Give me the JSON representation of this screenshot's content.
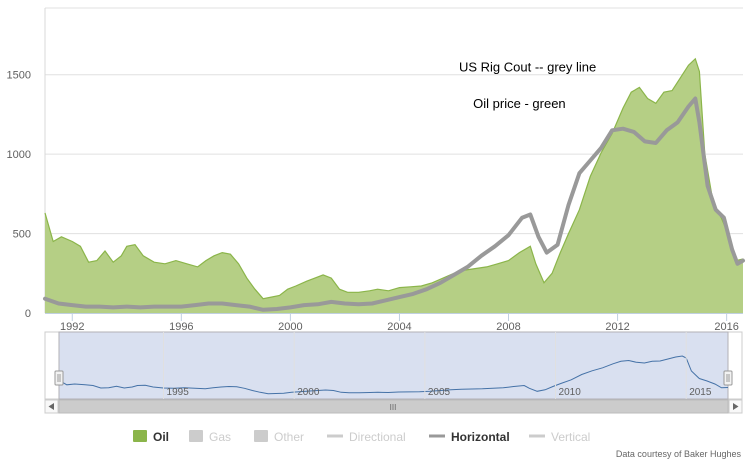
{
  "chart_data": {
    "type": "area",
    "series": [
      {
        "name": "Oil",
        "kind": "area",
        "color": "#8bb54a",
        "fill": "#b5cf85",
        "points": [
          [
            1991.0,
            630
          ],
          [
            1991.3,
            450
          ],
          [
            1991.6,
            480
          ],
          [
            1992.0,
            450
          ],
          [
            1992.3,
            420
          ],
          [
            1992.6,
            320
          ],
          [
            1992.9,
            330
          ],
          [
            1993.2,
            390
          ],
          [
            1993.5,
            320
          ],
          [
            1993.8,
            360
          ],
          [
            1994.0,
            420
          ],
          [
            1994.3,
            430
          ],
          [
            1994.6,
            360
          ],
          [
            1995.0,
            320
          ],
          [
            1995.4,
            310
          ],
          [
            1995.8,
            330
          ],
          [
            1996.2,
            310
          ],
          [
            1996.6,
            290
          ],
          [
            1996.9,
            330
          ],
          [
            1997.2,
            360
          ],
          [
            1997.5,
            380
          ],
          [
            1997.8,
            370
          ],
          [
            1998.1,
            310
          ],
          [
            1998.4,
            220
          ],
          [
            1998.7,
            150
          ],
          [
            1999.0,
            90
          ],
          [
            1999.3,
            100
          ],
          [
            1999.6,
            110
          ],
          [
            1999.9,
            150
          ],
          [
            2000.2,
            170
          ],
          [
            2000.6,
            200
          ],
          [
            2000.9,
            220
          ],
          [
            2001.2,
            240
          ],
          [
            2001.5,
            220
          ],
          [
            2001.8,
            150
          ],
          [
            2002.1,
            130
          ],
          [
            2002.5,
            130
          ],
          [
            2002.9,
            140
          ],
          [
            2003.2,
            150
          ],
          [
            2003.6,
            140
          ],
          [
            2004.0,
            160
          ],
          [
            2004.4,
            165
          ],
          [
            2004.8,
            170
          ],
          [
            2005.2,
            190
          ],
          [
            2005.6,
            220
          ],
          [
            2006.0,
            250
          ],
          [
            2006.4,
            270
          ],
          [
            2006.8,
            280
          ],
          [
            2007.2,
            290
          ],
          [
            2007.6,
            310
          ],
          [
            2008.0,
            330
          ],
          [
            2008.4,
            380
          ],
          [
            2008.8,
            420
          ],
          [
            2009.0,
            310
          ],
          [
            2009.3,
            190
          ],
          [
            2009.6,
            250
          ],
          [
            2009.9,
            380
          ],
          [
            2010.2,
            500
          ],
          [
            2010.6,
            650
          ],
          [
            2011.0,
            860
          ],
          [
            2011.4,
            1010
          ],
          [
            2011.8,
            1130
          ],
          [
            2012.2,
            1290
          ],
          [
            2012.5,
            1390
          ],
          [
            2012.8,
            1420
          ],
          [
            2013.1,
            1350
          ],
          [
            2013.4,
            1320
          ],
          [
            2013.7,
            1390
          ],
          [
            2014.0,
            1400
          ],
          [
            2014.3,
            1480
          ],
          [
            2014.6,
            1560
          ],
          [
            2014.85,
            1600
          ],
          [
            2015.0,
            1520
          ],
          [
            2015.2,
            1000
          ],
          [
            2015.5,
            700
          ],
          [
            2015.8,
            600
          ],
          [
            2016.1,
            480
          ],
          [
            2016.35,
            330
          ],
          [
            2016.6,
            340
          ]
        ]
      },
      {
        "name": "Horizontal",
        "kind": "line",
        "color": "#999999",
        "points": [
          [
            1991.0,
            90
          ],
          [
            1991.5,
            60
          ],
          [
            1992.0,
            50
          ],
          [
            1992.5,
            40
          ],
          [
            1993.0,
            40
          ],
          [
            1993.5,
            35
          ],
          [
            1994.0,
            40
          ],
          [
            1994.5,
            35
          ],
          [
            1995.0,
            40
          ],
          [
            1995.5,
            40
          ],
          [
            1996.0,
            40
          ],
          [
            1996.5,
            50
          ],
          [
            1997.0,
            60
          ],
          [
            1997.5,
            60
          ],
          [
            1998.0,
            50
          ],
          [
            1998.5,
            40
          ],
          [
            1999.0,
            20
          ],
          [
            1999.5,
            25
          ],
          [
            2000.0,
            35
          ],
          [
            2000.5,
            50
          ],
          [
            2001.0,
            55
          ],
          [
            2001.5,
            70
          ],
          [
            2002.0,
            60
          ],
          [
            2002.5,
            55
          ],
          [
            2003.0,
            60
          ],
          [
            2003.5,
            80
          ],
          [
            2004.0,
            100
          ],
          [
            2004.5,
            120
          ],
          [
            2005.0,
            150
          ],
          [
            2005.5,
            190
          ],
          [
            2006.0,
            240
          ],
          [
            2006.5,
            290
          ],
          [
            2007.0,
            360
          ],
          [
            2007.5,
            420
          ],
          [
            2008.0,
            490
          ],
          [
            2008.5,
            600
          ],
          [
            2008.8,
            620
          ],
          [
            2009.1,
            480
          ],
          [
            2009.4,
            380
          ],
          [
            2009.8,
            430
          ],
          [
            2010.2,
            680
          ],
          [
            2010.6,
            880
          ],
          [
            2011.0,
            960
          ],
          [
            2011.4,
            1040
          ],
          [
            2011.8,
            1150
          ],
          [
            2012.2,
            1160
          ],
          [
            2012.6,
            1140
          ],
          [
            2013.0,
            1080
          ],
          [
            2013.4,
            1070
          ],
          [
            2013.8,
            1150
          ],
          [
            2014.2,
            1200
          ],
          [
            2014.6,
            1300
          ],
          [
            2014.85,
            1350
          ],
          [
            2015.0,
            1200
          ],
          [
            2015.3,
            800
          ],
          [
            2015.6,
            650
          ],
          [
            2015.9,
            600
          ],
          [
            2016.2,
            400
          ],
          [
            2016.4,
            310
          ],
          [
            2016.6,
            330
          ]
        ]
      }
    ],
    "xlim": [
      1991.0,
      2016.6
    ],
    "ylim": [
      0,
      1920
    ],
    "yticks": [
      0,
      500,
      1000,
      1500
    ],
    "xticks": [
      1992,
      1996,
      2000,
      2004,
      2008,
      2012,
      2016
    ],
    "navigator_ticks": [
      "1995",
      "2000",
      "2005",
      "2010",
      "2015"
    ],
    "annotations": [
      {
        "text": "US Rig Cout -- grey line",
        "x": 2008.7,
        "y": 1520
      },
      {
        "text": "Oil price - green",
        "x": 2008.4,
        "y": 1290
      }
    ],
    "legend": {
      "placement": "bottom-center",
      "items": [
        {
          "label": "Oil",
          "symbol": "box",
          "color": "#8bb54a",
          "active": true
        },
        {
          "label": "Gas",
          "symbol": "box",
          "color": "#cccccc",
          "active": false
        },
        {
          "label": "Other",
          "symbol": "box",
          "color": "#cccccc",
          "active": false
        },
        {
          "label": "Directional",
          "symbol": "line",
          "color": "#cccccc",
          "active": false
        },
        {
          "label": "Horizontal",
          "symbol": "line",
          "color": "#999999",
          "active": true
        },
        {
          "label": "Vertical",
          "symbol": "line",
          "color": "#cccccc",
          "active": false
        }
      ]
    },
    "credit": "Data courtesy of Baker Hughes",
    "grid": true,
    "navigator": {
      "scrollbar_grip": "III"
    }
  }
}
